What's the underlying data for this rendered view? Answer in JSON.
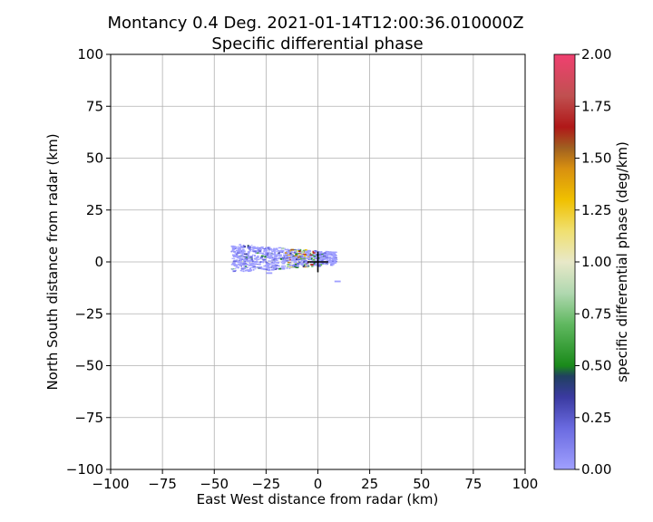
{
  "chart_data": {
    "type": "heatmap",
    "title": "Montancy 0.4 Deg. 2021-01-14T12:00:36.010000Z",
    "subtitle": "Specific differential phase",
    "xlabel": "East West distance from radar (km)",
    "ylabel": "North South distance from radar (km)",
    "xlim": [
      -100,
      100
    ],
    "ylim": [
      -100,
      100
    ],
    "xticks": [
      -100,
      -75,
      -50,
      -25,
      0,
      25,
      50,
      75,
      100
    ],
    "yticks": [
      -100,
      -75,
      -50,
      -25,
      0,
      25,
      50,
      75,
      100
    ],
    "xtick_labels": [
      "−100",
      "−75",
      "−50",
      "−25",
      "0",
      "25",
      "50",
      "75",
      "100"
    ],
    "ytick_labels": [
      "−100",
      "−75",
      "−50",
      "−25",
      "0",
      "25",
      "50",
      "75",
      "100"
    ],
    "grid": true,
    "radar_location": [
      0,
      0
    ],
    "echo_extent": {
      "x": [
        -42,
        8
      ],
      "y": [
        -10,
        14
      ]
    },
    "colorbar": {
      "label": "specific differential phase (deg/km)",
      "range": [
        0.0,
        2.0
      ],
      "ticks": [
        0.0,
        0.25,
        0.5,
        0.75,
        1.0,
        1.25,
        1.5,
        1.75,
        2.0
      ],
      "tick_labels": [
        "0.00",
        "0.25",
        "0.50",
        "0.75",
        "1.00",
        "1.25",
        "1.50",
        "1.75",
        "2.00"
      ],
      "colors": [
        {
          "v": 0.0,
          "c": "#a0a0ff"
        },
        {
          "v": 0.2,
          "c": "#6a6ae0"
        },
        {
          "v": 0.35,
          "c": "#3a3aa0"
        },
        {
          "v": 0.45,
          "c": "#204060"
        },
        {
          "v": 0.5,
          "c": "#1a8a1a"
        },
        {
          "v": 0.7,
          "c": "#60b860"
        },
        {
          "v": 0.85,
          "c": "#b0d8b0"
        },
        {
          "v": 1.0,
          "c": "#e8e8c8"
        },
        {
          "v": 1.15,
          "c": "#f0e070"
        },
        {
          "v": 1.3,
          "c": "#f0c000"
        },
        {
          "v": 1.45,
          "c": "#d89010"
        },
        {
          "v": 1.55,
          "c": "#a06020"
        },
        {
          "v": 1.65,
          "c": "#b01818"
        },
        {
          "v": 1.8,
          "c": "#c05050"
        },
        {
          "v": 2.0,
          "c": "#f04070"
        }
      ]
    }
  }
}
